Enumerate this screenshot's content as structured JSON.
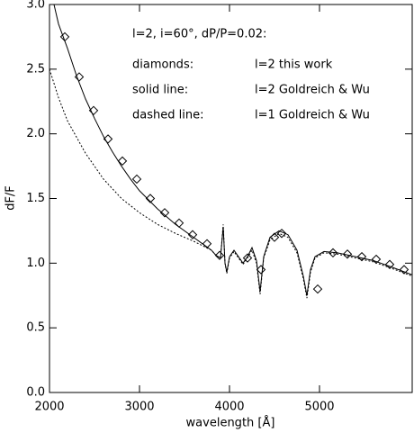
{
  "chart_data": {
    "type": "line",
    "annotations": [
      "l=2, i=60°, dP/P=0.02:",
      "diamonds:",
      "l=2 this work",
      "solid line:",
      "l=2 Goldreich & Wu",
      "dashed line:",
      "l=1 Goldreich & Wu"
    ],
    "xlabel": "wavelength [Å]",
    "ylabel": "dF/F",
    "xlim": [
      2000,
      6030
    ],
    "ylim": [
      0,
      3
    ],
    "xticks": [
      2000,
      3000,
      4000,
      5000
    ],
    "yticks": [
      {
        "value": 0,
        "label": "0.0"
      },
      0.5,
      {
        "value": 1,
        "label": "1.0"
      },
      1.5,
      {
        "value": 2,
        "label": "2.0"
      },
      2.5,
      {
        "value": 3,
        "label": "3.0"
      }
    ],
    "color": "#000000",
    "series": [
      {
        "style": "diamond",
        "x": [
          2170,
          2330,
          2490,
          2650,
          2810,
          2970,
          3120,
          3280,
          3440,
          3590,
          3750,
          3890,
          4200,
          4350,
          4500,
          4580,
          4980,
          5150,
          5310,
          5470,
          5630,
          5780,
          5940
        ],
        "values": [
          2.75,
          2.44,
          2.18,
          1.96,
          1.79,
          1.65,
          1.5,
          1.39,
          1.31,
          1.22,
          1.15,
          1.06,
          1.04,
          0.95,
          1.2,
          1.23,
          0.8,
          1.08,
          1.07,
          1.05,
          1.03,
          0.99,
          0.95
        ]
      },
      {
        "style": "solid",
        "x": [
          2050,
          2100,
          2200,
          2300,
          2400,
          2500,
          2600,
          2700,
          2800,
          2900,
          3000,
          3200,
          3400,
          3600,
          3700,
          3800,
          3850,
          3900,
          3930,
          3950,
          3970,
          4000,
          4050,
          4100,
          4150,
          4200,
          4250,
          4300,
          4340,
          4380,
          4450,
          4550,
          4650,
          4750,
          4820,
          4860,
          4900,
          4950,
          5050,
          5200,
          5400,
          5600,
          5800,
          6030
        ],
        "values": [
          3.0,
          2.85,
          2.66,
          2.45,
          2.27,
          2.12,
          1.98,
          1.86,
          1.75,
          1.65,
          1.56,
          1.42,
          1.3,
          1.2,
          1.15,
          1.1,
          1.06,
          1.04,
          1.28,
          1.0,
          0.93,
          1.05,
          1.1,
          1.05,
          1.0,
          1.05,
          1.12,
          1.02,
          0.78,
          1.05,
          1.2,
          1.25,
          1.22,
          1.1,
          0.9,
          0.75,
          0.95,
          1.05,
          1.09,
          1.08,
          1.05,
          1.02,
          0.97,
          0.91
        ]
      },
      {
        "style": "dashed",
        "x": [
          2000,
          2100,
          2200,
          2400,
          2600,
          2800,
          3000,
          3200,
          3400,
          3600,
          3800,
          3850,
          3900,
          3930,
          3950,
          3970,
          4000,
          4050,
          4100,
          4150,
          4200,
          4250,
          4300,
          4340,
          4380,
          4450,
          4550,
          4650,
          4750,
          4820,
          4860,
          4900,
          4950,
          5050,
          5200,
          5400,
          5600,
          5800,
          6030
        ],
        "values": [
          2.5,
          2.28,
          2.1,
          1.85,
          1.65,
          1.5,
          1.39,
          1.3,
          1.23,
          1.17,
          1.1,
          1.06,
          1.04,
          1.3,
          1.0,
          0.92,
          1.04,
          1.09,
          1.04,
          0.99,
          1.04,
          1.1,
          1.0,
          0.76,
          1.04,
          1.18,
          1.23,
          1.2,
          1.08,
          0.88,
          0.73,
          0.93,
          1.04,
          1.08,
          1.07,
          1.04,
          1.01,
          0.96,
          0.9
        ]
      }
    ]
  }
}
